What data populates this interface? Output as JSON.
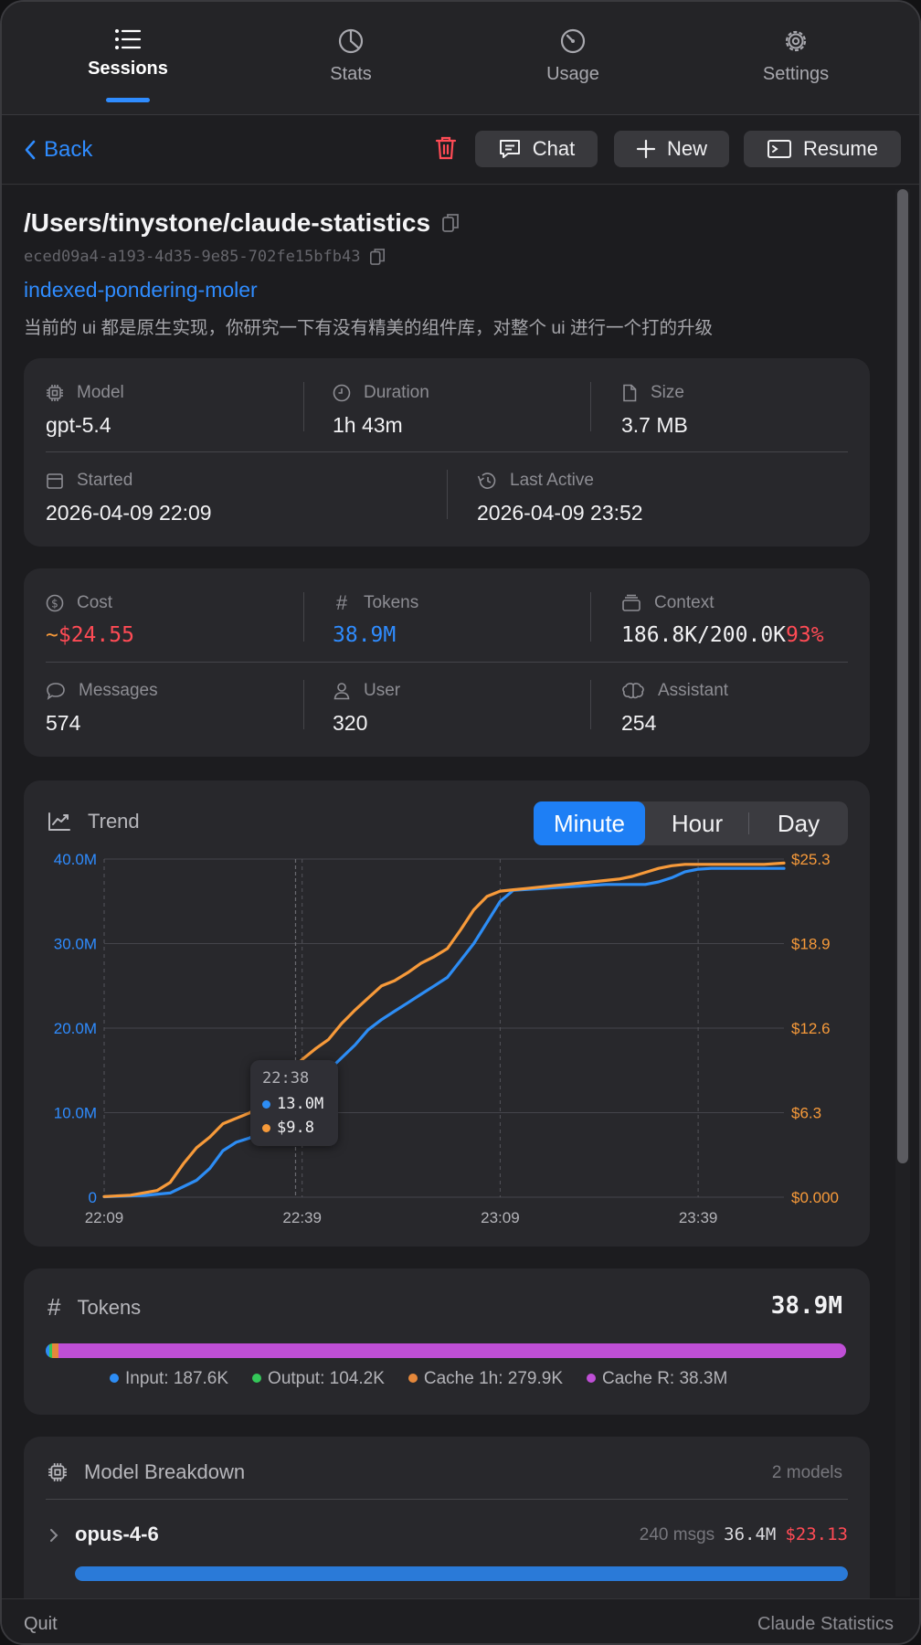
{
  "nav": {
    "tabs": [
      {
        "label": "Sessions",
        "icon": "list-icon",
        "active": true
      },
      {
        "label": "Stats",
        "icon": "pie-chart-icon",
        "active": false
      },
      {
        "label": "Usage",
        "icon": "gauge-icon",
        "active": false
      },
      {
        "label": "Settings",
        "icon": "gear-icon",
        "active": false
      }
    ]
  },
  "toolbar": {
    "back_label": "Back",
    "chat_label": "Chat",
    "new_label": "New",
    "resume_label": "Resume"
  },
  "session": {
    "path": "/Users/tinystone/claude-statistics",
    "id": "eced09a4-a193-4d35-9e85-702fe15bfb43",
    "slug": "indexed-pondering-moler",
    "first_prompt": "当前的 ui 都是原生实现，你研究一下有没有精美的组件库，对整个 ui 进行一个打的升级"
  },
  "info": {
    "model_label": "Model",
    "model": "gpt-5.4",
    "duration_label": "Duration",
    "duration": "1h 43m",
    "size_label": "Size",
    "size": "3.7 MB",
    "started_label": "Started",
    "started": "2026-04-09 22:09",
    "last_active_label": "Last Active",
    "last_active": "2026-04-09 23:52"
  },
  "usage": {
    "cost_label": "Cost",
    "cost_prefix": "~",
    "cost": "$24.55",
    "tokens_label": "Tokens",
    "tokens": "38.9M",
    "context_label": "Context",
    "context": "186.8K/200.0K",
    "context_pct": "93%",
    "messages_label": "Messages",
    "messages": "574",
    "user_label": "User",
    "user": "320",
    "assistant_label": "Assistant",
    "assistant": "254"
  },
  "trend": {
    "title": "Trend",
    "ranges": [
      "Minute",
      "Hour",
      "Day"
    ],
    "selected_range": "Minute",
    "tooltip": {
      "time": "22:38",
      "tokens": "13.0M",
      "cost": "$9.8"
    }
  },
  "chart_data": {
    "type": "line",
    "y_left_ticks": [
      "0",
      "10.0M",
      "20.0M",
      "30.0M",
      "40.0M"
    ],
    "y_right_ticks": [
      "$0.000",
      "$6.3",
      "$12.6",
      "$18.9",
      "$25.3"
    ],
    "x_ticks": [
      "22:09",
      "22:39",
      "23:09",
      "23:39"
    ],
    "x_range_minutes": [
      0,
      103
    ],
    "ylim_left": [
      0,
      40.0
    ],
    "ylim_right": [
      0,
      25.3
    ],
    "grid": true,
    "series": [
      {
        "axis": "left",
        "color": "#2d8df5",
        "x": [
          0,
          6,
          10,
          14,
          16,
          18,
          20,
          22,
          24,
          26,
          28,
          30,
          32,
          34,
          36,
          38,
          40,
          42,
          44,
          46,
          48,
          50,
          52,
          54,
          56,
          58,
          60,
          62,
          64,
          66,
          68,
          70,
          72,
          74,
          76,
          78,
          80,
          82,
          84,
          86,
          88,
          90,
          92,
          94,
          96,
          98,
          100,
          103
        ],
        "values": [
          0.05,
          0.2,
          0.5,
          2.0,
          3.4,
          5.5,
          6.5,
          7.0,
          7.8,
          9.0,
          10.0,
          13.0,
          14.0,
          15.0,
          16.5,
          18.0,
          19.8,
          21.0,
          22.0,
          23.0,
          24.0,
          25.0,
          26.0,
          28.0,
          30.0,
          32.5,
          35.0,
          36.3,
          36.4,
          36.5,
          36.6,
          36.7,
          36.8,
          36.9,
          37.0,
          37.0,
          37.0,
          37.0,
          37.3,
          37.8,
          38.5,
          38.8,
          38.9,
          38.9,
          38.9,
          38.9,
          38.9,
          38.9
        ]
      },
      {
        "axis": "right",
        "color": "#f79a3a",
        "x": [
          0,
          4,
          8,
          10,
          12,
          14,
          16,
          18,
          20,
          22,
          24,
          26,
          28,
          30,
          32,
          34,
          36,
          38,
          40,
          42,
          44,
          46,
          48,
          50,
          52,
          54,
          56,
          58,
          60,
          62,
          64,
          66,
          68,
          70,
          72,
          74,
          76,
          78,
          80,
          82,
          84,
          86,
          88,
          90,
          92,
          94,
          96,
          98,
          100,
          103
        ],
        "values": [
          0.05,
          0.15,
          0.5,
          1.1,
          2.5,
          3.7,
          4.5,
          5.5,
          5.9,
          6.3,
          7.0,
          8.0,
          9.4,
          10.3,
          11.1,
          11.8,
          13.0,
          14.0,
          14.9,
          15.8,
          16.2,
          16.8,
          17.5,
          18.0,
          18.6,
          20.0,
          21.5,
          22.5,
          22.9,
          23.0,
          23.1,
          23.2,
          23.3,
          23.4,
          23.5,
          23.6,
          23.7,
          23.8,
          24.0,
          24.3,
          24.6,
          24.8,
          24.9,
          24.9,
          24.9,
          24.9,
          24.9,
          24.9,
          24.9,
          25.0
        ]
      }
    ],
    "marker_x": 29
  },
  "tokens": {
    "title": "Tokens",
    "total": "38.9M",
    "breakdown": [
      {
        "label": "Input: 187.6K",
        "color": "#2d8df5",
        "value": 187.6
      },
      {
        "label": "Output: 104.2K",
        "color": "#34c759",
        "value": 104.2
      },
      {
        "label": "Cache 1h: 279.9K",
        "color": "#e5883b",
        "value": 279.9
      },
      {
        "label": "Cache R: 38.3M",
        "color": "#bf4fd6",
        "value": 38300
      }
    ]
  },
  "models": {
    "title": "Model Breakdown",
    "count": "2 models",
    "items": [
      {
        "name": "opus-4-6",
        "msgs": "240 msgs",
        "tokens": "36.4M",
        "cost": "$23.13",
        "share": 1.0
      }
    ]
  },
  "footer": {
    "quit_label": "Quit",
    "app_name": "Claude Statistics"
  },
  "colors": {
    "accent": "#2f8cff",
    "danger": "#ff4b55",
    "cost_axis": "#f79a3a"
  }
}
